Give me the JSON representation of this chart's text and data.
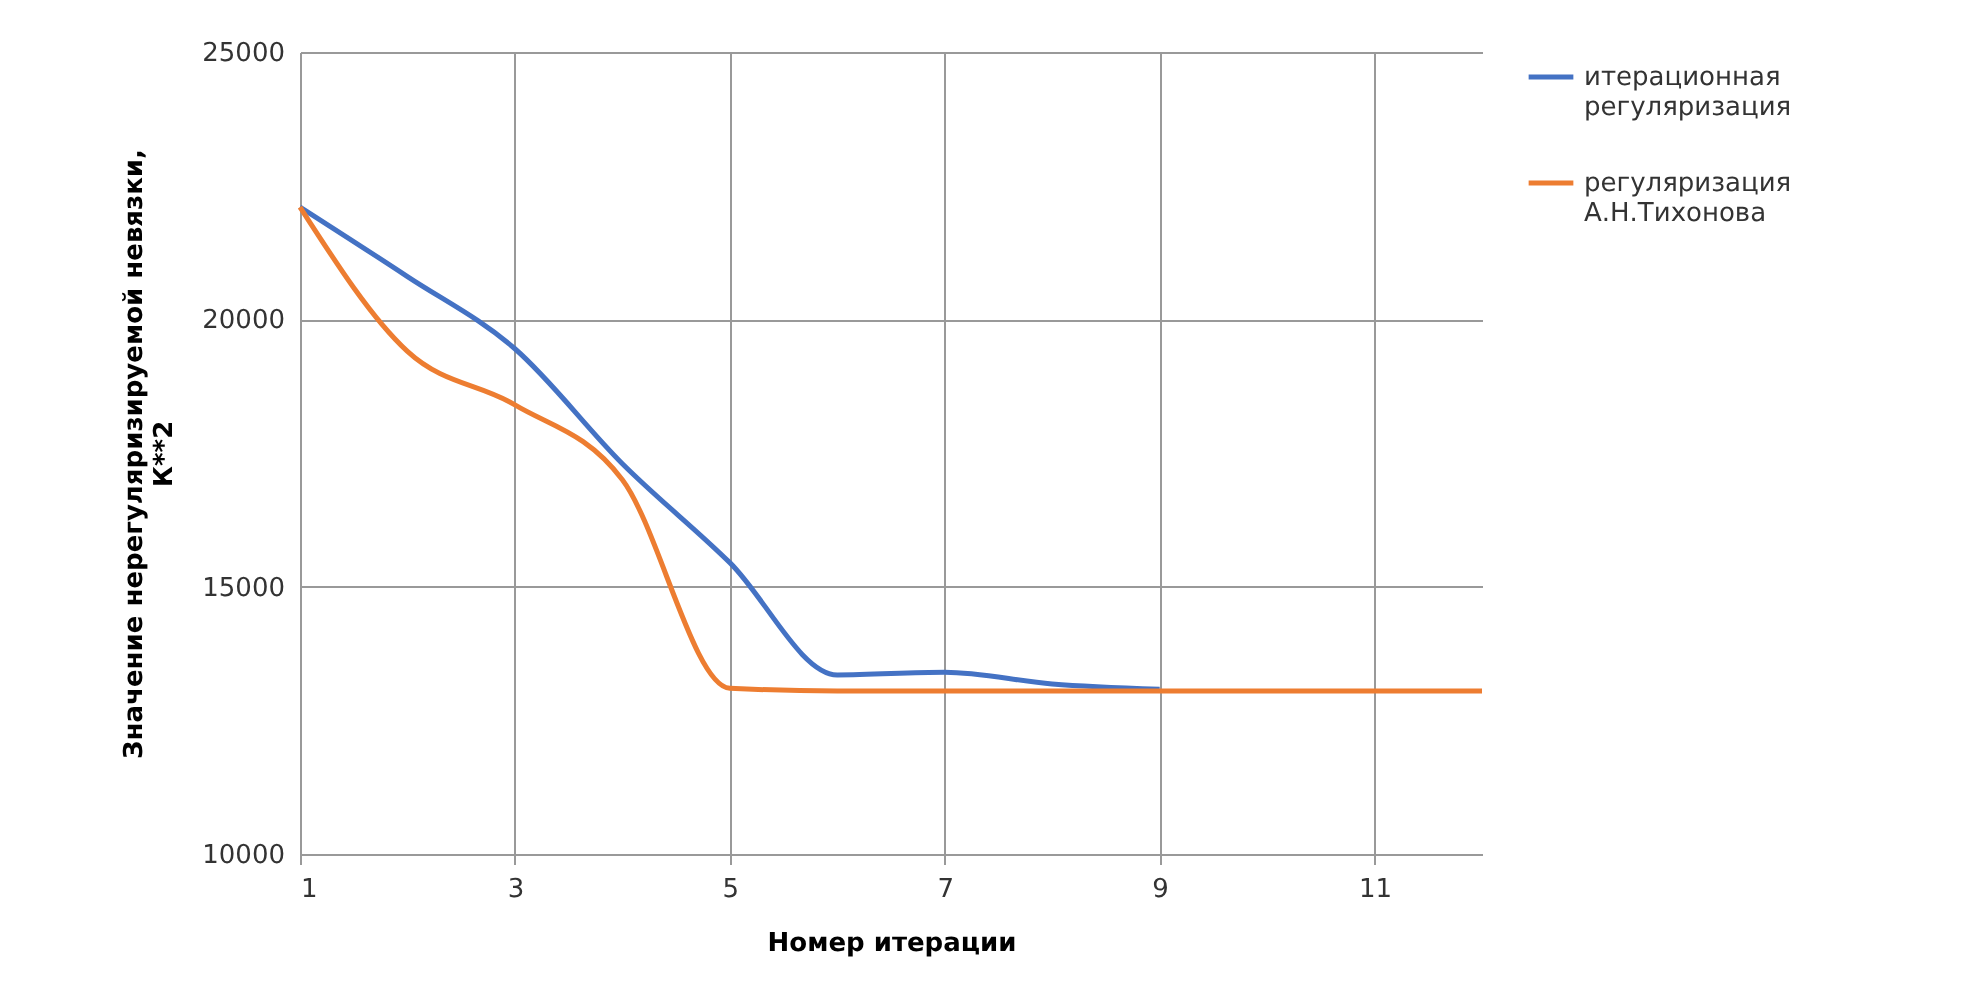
{
  "chart_data": {
    "type": "line",
    "xlabel": "Номер итерации",
    "ylabel": "Значение нерегуляризируемой невязки, К**2",
    "x": [
      1,
      2,
      3,
      4,
      5,
      6,
      7,
      8,
      9,
      10,
      11,
      12
    ],
    "series": [
      {
        "name": "итерационная регуляризация",
        "color": "#4472c4",
        "values": [
          22100,
          20800,
          19450,
          17300,
          15450,
          13350,
          13400,
          13180,
          13080,
          null,
          null,
          null
        ]
      },
      {
        "name": "регуляризация А.Н.Тихонова",
        "color": "#ed7d31",
        "values": [
          22100,
          19400,
          18400,
          17000,
          13100,
          13050,
          13050,
          13050,
          13050,
          13050,
          13050,
          13050
        ]
      }
    ],
    "xlim": [
      1,
      12
    ],
    "xticks": [
      1,
      3,
      5,
      7,
      9,
      11
    ],
    "ylim": [
      10000,
      25000
    ],
    "yticks": [
      10000,
      15000,
      20000,
      25000
    ],
    "grid": true,
    "legend": "right",
    "line_style": "solid",
    "marker": "none"
  }
}
